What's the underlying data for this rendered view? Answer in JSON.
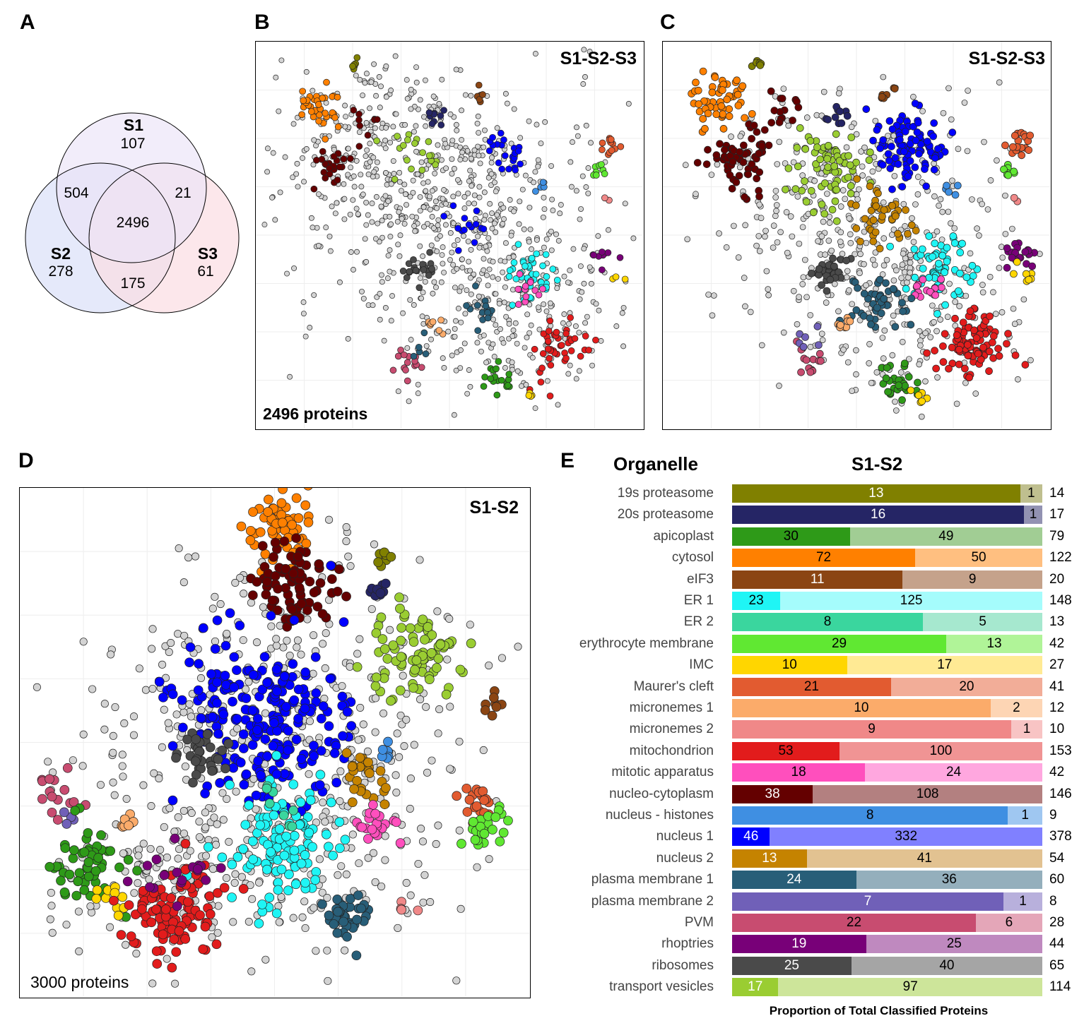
{
  "panels": {
    "A": "A",
    "B": "B",
    "C": "C",
    "D": "D",
    "E": "E"
  },
  "venn": {
    "sets": [
      {
        "name": "S1",
        "only": "107",
        "color": "#f1eefb"
      },
      {
        "name": "S2",
        "only": "278",
        "color": "#e4e8fa"
      },
      {
        "name": "S3",
        "only": "61",
        "color": "#fde6e8"
      }
    ],
    "s1_s2": "504",
    "s1_s3": "21",
    "s2_s3": "175",
    "all": "2496"
  },
  "plot_b": {
    "title": "S1-S2-S3",
    "count": "2496 proteins"
  },
  "plot_c": {
    "title": "S1-S2-S3"
  },
  "plot_d": {
    "title": "S1-S2",
    "count": "3000 proteins"
  },
  "chart_data": {
    "type": "bar",
    "stacked": true,
    "column_header": "Organelle",
    "title": "S1-S2",
    "xlabel": "Proportion of Total Classified Proteins",
    "categories": [
      "19s proteasome",
      "20s proteasome",
      "apicoplast",
      "cytosol",
      "eIF3",
      "ER 1",
      "ER 2",
      "erythrocyte membrane",
      "IMC",
      "Maurer's cleft",
      "micronemes 1",
      "micronemes 2",
      "mitochondrion",
      "mitotic apparatus",
      "nucleo-cytoplasm",
      "nucleus - histones",
      "nucleus 1",
      "nucleus 2",
      "plasma membrane 1",
      "plasma membrane 2",
      "PVM",
      "rhoptries",
      "ribosomes",
      "transport vesicles"
    ],
    "series": [
      {
        "values": [
          13,
          16,
          30,
          72,
          11,
          23,
          8,
          29,
          10,
          21,
          10,
          9,
          53,
          18,
          38,
          8,
          46,
          13,
          24,
          7,
          22,
          19,
          25,
          17
        ],
        "colors": [
          "#808000",
          "#252565",
          "#2e9a18",
          "#ff8000",
          "#8b4513",
          "#1ff5f5",
          "#3ad69e",
          "#60e832",
          "#ffd600",
          "#e25b30",
          "#fbab6a",
          "#f08888",
          "#e21c1c",
          "#ff4fbd",
          "#640000",
          "#3f8fe2",
          "#0000ff",
          "#c58300",
          "#285e78",
          "#7060b8",
          "#c84c70",
          "#780078",
          "#4a4a4a",
          "#9acd32"
        ],
        "text_colors": [
          "#fff",
          "#fff",
          "#000",
          "#000",
          "#fff",
          "#000",
          "#000",
          "#000",
          "#000",
          "#000",
          "#000",
          "#000",
          "#000",
          "#000",
          "#fff",
          "#000",
          "#fff",
          "#fff",
          "#fff",
          "#fff",
          "#000",
          "#fff",
          "#fff",
          "#fff"
        ]
      },
      {
        "values": [
          1,
          1,
          49,
          50,
          9,
          125,
          5,
          13,
          17,
          20,
          2,
          1,
          100,
          24,
          108,
          1,
          332,
          41,
          36,
          1,
          6,
          25,
          40,
          97
        ],
        "colors": [
          "#bfbf8f",
          "#9292b2",
          "#a1cd94",
          "#ffbf80",
          "#c5a28b",
          "#a5fcfc",
          "#a6e8cf",
          "#b0f498",
          "#ffea94",
          "#f2ad98",
          "#fdd5b4",
          "#f8c4c4",
          "#f09494",
          "#ffa7df",
          "#b38080",
          "#9fc7f1",
          "#8080ff",
          "#e2c291",
          "#94afbc",
          "#b8b0dc",
          "#e4a6b8",
          "#bf89bf",
          "#a5a5a5",
          "#cde59a"
        ]
      }
    ],
    "totals": [
      14,
      17,
      79,
      122,
      20,
      148,
      13,
      42,
      27,
      41,
      12,
      10,
      153,
      42,
      146,
      9,
      378,
      54,
      60,
      8,
      28,
      44,
      65,
      114
    ]
  }
}
